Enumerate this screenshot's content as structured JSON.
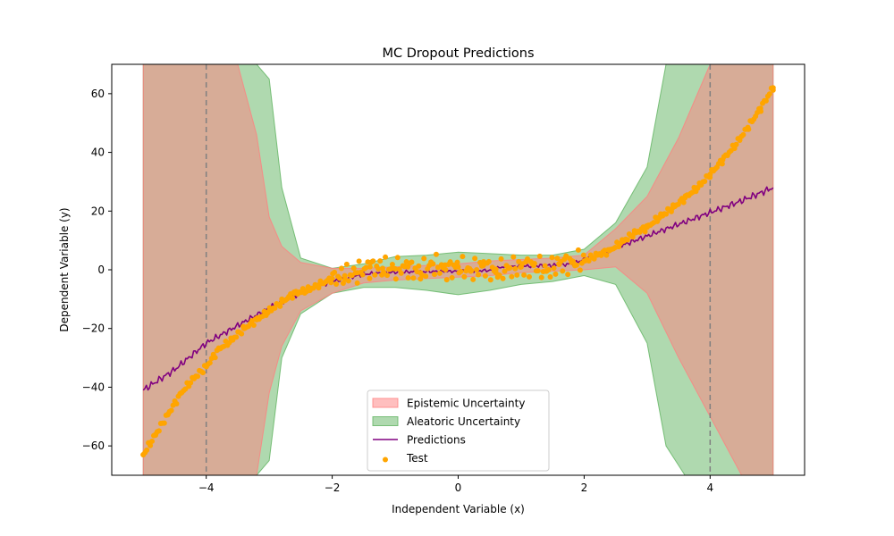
{
  "chart_data": {
    "type": "line",
    "title": "MC Dropout Predictions",
    "xlabel": "Independent Variable (x)",
    "ylabel": "Dependent Variable (y)",
    "xlim": [
      -5.5,
      5.5
    ],
    "ylim": [
      -70,
      70
    ],
    "xticks": [
      -4,
      -2,
      0,
      2,
      4
    ],
    "yticks": [
      -60,
      -40,
      -20,
      0,
      20,
      40,
      60
    ],
    "xtick_labels": [
      "−4",
      "−2",
      "0",
      "2",
      "4"
    ],
    "ytick_labels": [
      "−60",
      "−40",
      "−20",
      "0",
      "20",
      "40",
      "60"
    ],
    "vlines": [
      -4,
      4
    ],
    "grid": false,
    "legend_position": "lower center",
    "colors": {
      "epistemic": "#ff8080",
      "aleatoric": "#5fb35f",
      "predictions": "#800080",
      "test": "#ffa500",
      "vline": "#808080"
    },
    "legend": [
      {
        "label": "Epistemic Uncertainty",
        "kind": "patch",
        "color": "#ff8080"
      },
      {
        "label": "Aleatoric Uncertainty",
        "kind": "patch",
        "color": "#5fb35f"
      },
      {
        "label": "Predictions",
        "kind": "line",
        "color": "#800080"
      },
      {
        "label": "Test",
        "kind": "scatter",
        "color": "#ffa500"
      }
    ],
    "series": [
      {
        "name": "Predictions",
        "type": "line",
        "x": [
          -5.0,
          -4.5,
          -4.0,
          -3.5,
          -3.0,
          -2.5,
          -2.0,
          -1.5,
          -1.0,
          -0.5,
          0.0,
          0.5,
          0.7,
          1.0,
          1.5,
          1.8,
          2.0,
          2.5,
          3.0,
          3.5,
          4.0,
          4.5,
          5.0
        ],
        "y": [
          -41,
          -34,
          -25,
          -19,
          -13,
          -8,
          -4,
          -1.5,
          -0.8,
          -0.6,
          -0.5,
          -0.2,
          1.0,
          1.2,
          1.5,
          2.0,
          3.5,
          7.5,
          11.5,
          15.5,
          19.5,
          23.5,
          28
        ]
      },
      {
        "name": "Test",
        "type": "scatter",
        "x": [
          -5.0,
          -4.8,
          -4.6,
          -4.4,
          -4.2,
          -4.0,
          -3.8,
          -3.6,
          -3.4,
          -3.2,
          -3.0,
          -2.8,
          -2.6,
          -2.4,
          -2.2,
          -2.0,
          -1.8,
          -1.6,
          -1.4,
          -1.2,
          -1.0,
          -0.8,
          -0.6,
          -0.4,
          -0.2,
          0.0,
          0.2,
          0.4,
          0.6,
          0.8,
          1.0,
          1.2,
          1.4,
          1.6,
          1.8,
          2.0,
          2.2,
          2.4,
          2.6,
          2.8,
          3.0,
          3.2,
          3.4,
          3.6,
          3.8,
          4.0,
          4.2,
          4.4,
          4.6,
          4.8,
          5.0
        ],
        "y": [
          -63,
          -56,
          -49,
          -42,
          -37,
          -33,
          -27,
          -24,
          -20,
          -17,
          -14,
          -11,
          -8,
          -7,
          -5,
          -3,
          -2,
          -1,
          1,
          0.5,
          0.3,
          1,
          -1,
          2,
          0,
          1,
          -0.5,
          1.5,
          -1,
          0.5,
          1,
          1.5,
          -0.5,
          2,
          2.5,
          3,
          5,
          6.5,
          9.5,
          12.5,
          14.5,
          18,
          21,
          24.5,
          28,
          32.5,
          37.5,
          42.5,
          48.5,
          55,
          62
        ]
      },
      {
        "name": "Epistemic Uncertainty",
        "type": "band",
        "x": [
          -5.0,
          -4.0,
          -3.5,
          -3.2,
          -3.0,
          -2.8,
          -2.5,
          -2.0,
          -1.5,
          -1.0,
          -0.5,
          0.0,
          0.5,
          1.0,
          1.5,
          2.0,
          2.5,
          3.0,
          3.5,
          4.0,
          4.5,
          5.0
        ],
        "lower": [
          -70,
          -70,
          -70,
          -70,
          -42,
          -26,
          -14,
          -8,
          -4.5,
          -3.5,
          -3,
          -2.5,
          -2,
          -1,
          -0.5,
          0,
          1,
          -8,
          -30,
          -50,
          -70,
          -70
        ],
        "upper": [
          70,
          70,
          70,
          46,
          18,
          8,
          2.5,
          0.5,
          0.5,
          1,
          1.5,
          2,
          3,
          3.5,
          4,
          5,
          14,
          25,
          45,
          70,
          70,
          70
        ]
      },
      {
        "name": "Aleatoric Uncertainty",
        "type": "band",
        "x": [
          -5.0,
          -4.0,
          -3.5,
          -3.2,
          -3.0,
          -2.8,
          -2.5,
          -2.0,
          -1.5,
          -1.0,
          -0.5,
          0.0,
          0.5,
          1.0,
          1.5,
          2.0,
          2.5,
          3.0,
          3.3,
          3.6,
          4.0,
          4.5,
          5.0
        ],
        "lower": [
          -70,
          -70,
          -70,
          -70,
          -65,
          -30,
          -15,
          -8,
          -6,
          -6,
          -7,
          -8.5,
          -7,
          -5,
          -4,
          -2,
          -5,
          -25,
          -60,
          -70,
          -70,
          -70,
          -70
        ],
        "upper": [
          70,
          70,
          70,
          70,
          65,
          28,
          4,
          0.5,
          2,
          4.5,
          5,
          6,
          5.5,
          5,
          5,
          7,
          16,
          35,
          70,
          70,
          70,
          70,
          70
        ]
      }
    ]
  }
}
